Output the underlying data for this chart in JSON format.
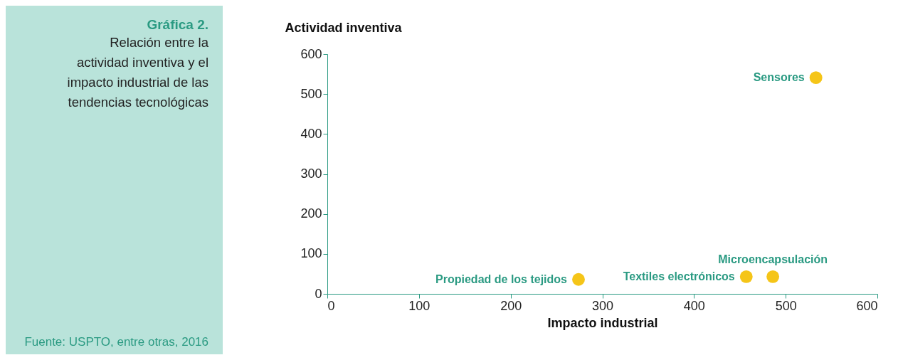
{
  "chart_data": {
    "type": "scatter",
    "title": "Gráfica 2.",
    "subtitle": "Relación entre la actividad inventiva y el impacto industrial de las tendencias tecnológicas",
    "xlabel": "Impacto industrial",
    "ylabel": "Actividad inventiva",
    "x": [
      533,
      274,
      457,
      486
    ],
    "series": [
      {
        "color": "#f5c518",
        "values": [
          541,
          36,
          43,
          43
        ]
      }
    ],
    "xlim": [
      0,
      600
    ],
    "xticks": [
      0,
      100,
      200,
      300,
      400,
      500,
      600
    ],
    "ylim": [
      0,
      600
    ],
    "yticks": [
      0,
      100,
      200,
      300,
      400,
      500,
      600
    ],
    "grid": false,
    "legend": false,
    "marker": "circle",
    "annotations": [
      {
        "text": "Sensores",
        "x": 533,
        "y": 541
      },
      {
        "text": "Propiedad de los tejidos",
        "x": 274,
        "y": 36
      },
      {
        "text": "Textiles electrónicos",
        "x": 457,
        "y": 43
      },
      {
        "text": "Microencapsulación",
        "x": 486,
        "y": 43
      },
      "Fuente: USPTO, entre otras, 2016"
    ]
  }
}
